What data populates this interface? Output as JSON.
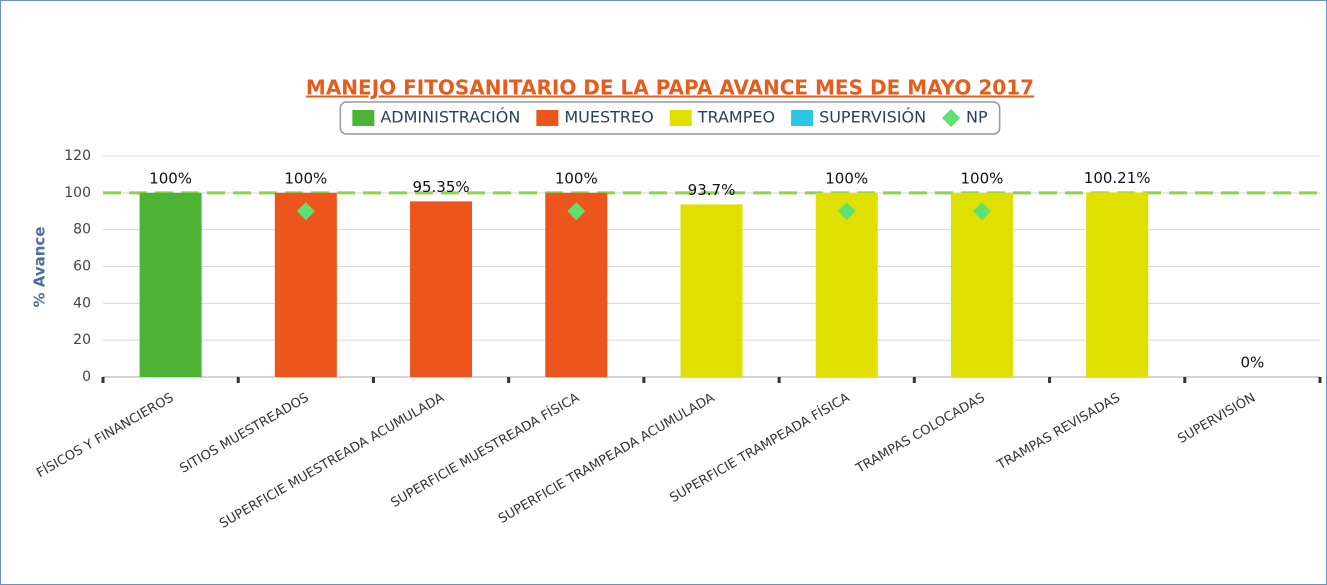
{
  "chart_data": {
    "type": "bar",
    "title": "MANEJO FITOSANITARIO DE LA PAPA AVANCE MES DE MAYO 2017",
    "y_axis_label": "% Avance",
    "categories": [
      "FÍSICOS Y FINANCIEROS",
      "SITIOS MUESTREADOS",
      "SUPERFICIE MUESTREADA ACUMULADA",
      "SUPERFICIE MUESTREADA FÍSICA",
      "SUPERFICIE TRAMPEADA ACUMULADA",
      "SUPERFICIE TRAMPEADA FÍSICA",
      "TRAMPAS COLOCADAS",
      "TRAMPAS REVISADAS",
      "SUPERVISIÓN"
    ],
    "series": [
      {
        "name": "ADMINISTRACIÓN",
        "color": "#4db334",
        "values": [
          100,
          null,
          null,
          null,
          null,
          null,
          null,
          null,
          null
        ],
        "value_labels": [
          "100%",
          null,
          null,
          null,
          null,
          null,
          null,
          null,
          null
        ]
      },
      {
        "name": "MUESTREO",
        "color": "#ec561c",
        "values": [
          null,
          100,
          95.35,
          100,
          null,
          null,
          null,
          null,
          null
        ],
        "value_labels": [
          null,
          "100%",
          "95.35%",
          "100%",
          null,
          null,
          null,
          null,
          null
        ]
      },
      {
        "name": "TRAMPEO",
        "color": "#dfe000",
        "values": [
          null,
          null,
          null,
          null,
          93.7,
          100,
          100,
          100.21,
          null
        ],
        "value_labels": [
          null,
          null,
          null,
          null,
          "93.7%",
          "100%",
          "100%",
          "100.21%",
          null
        ]
      },
      {
        "name": "SUPERVISIÓN",
        "color": "#2ac7e3",
        "values": [
          null,
          null,
          null,
          null,
          null,
          null,
          null,
          null,
          0
        ],
        "value_labels": [
          null,
          null,
          null,
          null,
          null,
          null,
          null,
          null,
          "0%"
        ]
      },
      {
        "name": "NP",
        "color": "#5fe070",
        "marker": "diamond",
        "values": [
          null,
          90,
          null,
          90,
          null,
          90,
          90,
          null,
          null
        ]
      }
    ],
    "ylim": [
      0,
      120
    ],
    "yticks": [
      0,
      20,
      40,
      60,
      80,
      100,
      120
    ],
    "grid": true,
    "plot_line": 100,
    "plot_line_color": "#8fd14a",
    "legend": "top"
  }
}
